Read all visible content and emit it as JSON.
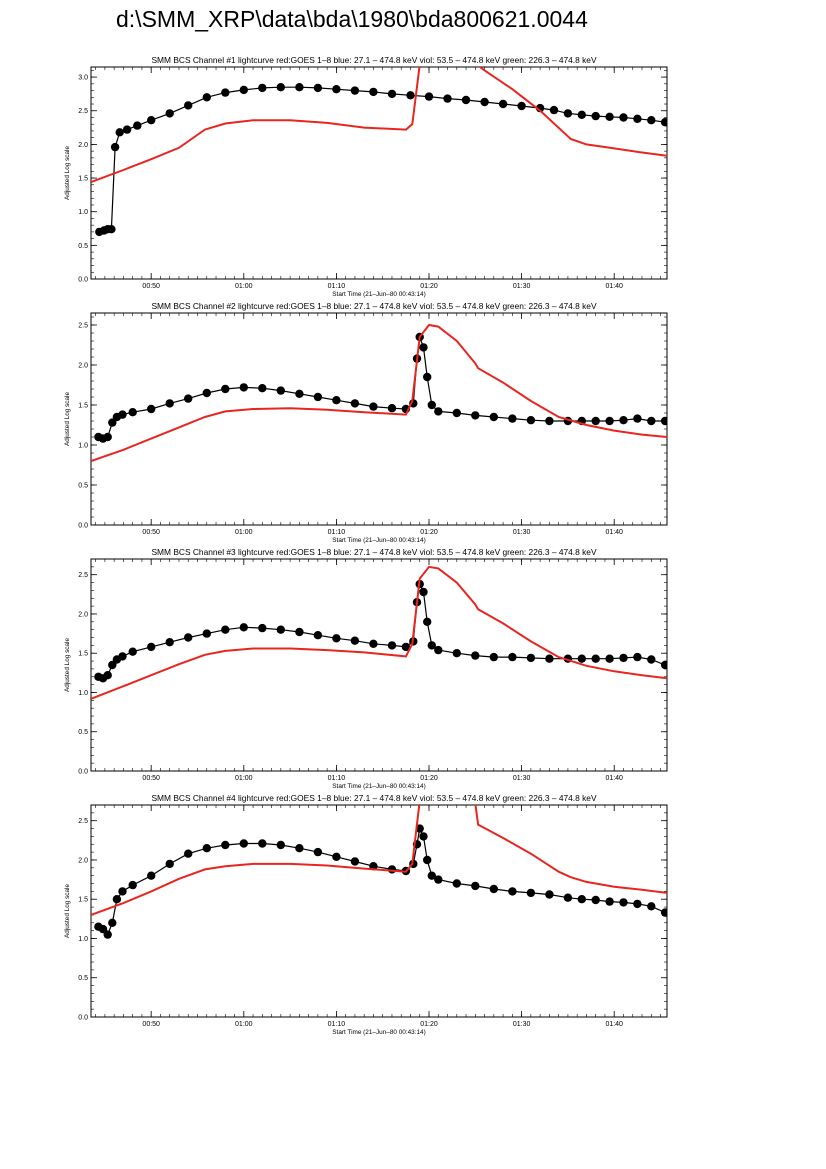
{
  "page": {
    "title": "d:\\SMM_XRP\\data\\bda\\1980\\bda800621.0044"
  },
  "colors": {
    "goes": "#e8251f",
    "bcs": "#000000",
    "axes": "#000000"
  },
  "chart_data": [
    {
      "type": "line",
      "title": "SMM BCS Channel #1 lightcurve  red:GOES 1–8  blue: 27.1 – 474.8 keV  viol: 53.5 – 474.8 keV  green: 226.3 – 474.8 keV",
      "xlabel": "Start Time (21–Jun–80 00:43:14)",
      "ylabel": "Adjusted Log scale",
      "xlim": [
        43.5,
        105.7
      ],
      "ylim": [
        0,
        3.15
      ],
      "x_ticks": [
        50,
        60,
        70,
        80,
        90,
        100
      ],
      "x_tick_labels": [
        "00:50",
        "01:00",
        "01:10",
        "01:20",
        "01:30",
        "01:40"
      ],
      "y_ticks": [
        0,
        0.5,
        1.0,
        1.5,
        2.0,
        2.5,
        3.0
      ],
      "y_tick_labels": [
        "0.0",
        "0.5",
        "1.0",
        "1.5",
        "2.0",
        "2.5",
        "3.0"
      ],
      "grid": false,
      "series": [
        {
          "name": "red:GOES 1–8",
          "x": [
            43.5,
            47,
            50,
            53,
            55.8,
            58,
            61,
            65,
            69,
            73,
            77.5,
            78.2,
            79,
            80,
            85,
            86,
            89,
            92,
            95,
            95.3,
            97,
            100,
            103,
            105.7
          ],
          "y": [
            1.44,
            1.62,
            1.78,
            1.95,
            2.22,
            2.31,
            2.36,
            2.36,
            2.32,
            2.25,
            2.22,
            2.3,
            3.18,
            3.25,
            3.2,
            3.1,
            2.82,
            2.5,
            2.12,
            2.08,
            2.0,
            1.94,
            1.88,
            1.83
          ]
        },
        {
          "name": "BCS",
          "x": [
            44.4,
            44.9,
            45.3,
            45.7,
            46.1,
            46.6,
            47.4,
            48.5,
            50,
            52,
            54,
            56,
            58,
            60,
            62,
            64,
            66,
            68,
            70,
            72,
            74,
            76,
            78,
            80,
            82,
            84,
            86,
            88,
            90,
            92,
            93.5,
            95,
            96.5,
            98,
            99.5,
            101,
            102.5,
            104,
            105.5
          ],
          "y": [
            0.7,
            0.72,
            0.74,
            0.74,
            1.96,
            2.18,
            2.22,
            2.28,
            2.36,
            2.46,
            2.58,
            2.7,
            2.77,
            2.81,
            2.84,
            2.85,
            2.85,
            2.84,
            2.82,
            2.8,
            2.78,
            2.75,
            2.73,
            2.71,
            2.68,
            2.66,
            2.63,
            2.6,
            2.57,
            2.54,
            2.51,
            2.46,
            2.44,
            2.42,
            2.41,
            2.4,
            2.38,
            2.36,
            2.33
          ]
        }
      ]
    },
    {
      "type": "line",
      "title": "SMM BCS Channel #2 lightcurve  red:GOES 1–8  blue: 27.1 – 474.8 keV  viol: 53.5 – 474.8 keV  green: 226.3 – 474.8 keV",
      "xlabel": "Start Time (21–Jun–80 00:43:14)",
      "ylabel": "Adjusted Log scale",
      "xlim": [
        43.5,
        105.7
      ],
      "ylim": [
        0,
        2.65
      ],
      "x_ticks": [
        50,
        60,
        70,
        80,
        90,
        100
      ],
      "x_tick_labels": [
        "00:50",
        "01:00",
        "01:10",
        "01:20",
        "01:30",
        "01:40"
      ],
      "y_ticks": [
        0,
        0.5,
        1.0,
        1.5,
        2.0,
        2.5
      ],
      "y_tick_labels": [
        "0.0",
        "0.5",
        "1.0",
        "1.5",
        "2.0",
        "2.5"
      ],
      "grid": false,
      "series": [
        {
          "name": "red:GOES 1–8",
          "x": [
            43.5,
            47,
            50,
            53,
            55.8,
            58,
            61,
            65,
            69,
            73,
            77.5,
            78.2,
            79,
            80,
            81,
            83,
            85,
            85.3,
            88,
            91,
            94,
            97,
            100,
            103,
            105.7
          ],
          "y": [
            0.8,
            0.94,
            1.08,
            1.22,
            1.35,
            1.42,
            1.45,
            1.46,
            1.44,
            1.41,
            1.38,
            1.55,
            2.35,
            2.5,
            2.48,
            2.3,
            2.02,
            1.96,
            1.78,
            1.55,
            1.35,
            1.25,
            1.18,
            1.13,
            1.1
          ]
        },
        {
          "name": "BCS",
          "x": [
            44.3,
            44.8,
            45.3,
            45.8,
            46.3,
            46.9,
            48,
            50,
            52,
            54,
            56,
            58,
            60,
            62,
            64,
            66,
            68,
            70,
            72,
            74,
            76,
            77.5,
            78.3,
            78.7,
            79,
            79.4,
            79.8,
            80.3,
            81,
            83,
            85,
            87,
            89,
            91,
            93,
            95,
            96.5,
            98,
            99.5,
            101,
            102.5,
            104,
            105.5
          ],
          "y": [
            1.1,
            1.08,
            1.1,
            1.28,
            1.35,
            1.38,
            1.41,
            1.45,
            1.52,
            1.58,
            1.65,
            1.7,
            1.72,
            1.71,
            1.68,
            1.64,
            1.6,
            1.56,
            1.52,
            1.48,
            1.46,
            1.45,
            1.52,
            2.08,
            2.35,
            2.22,
            1.85,
            1.5,
            1.42,
            1.4,
            1.37,
            1.35,
            1.33,
            1.31,
            1.3,
            1.3,
            1.3,
            1.3,
            1.3,
            1.31,
            1.33,
            1.3,
            1.3
          ]
        }
      ]
    },
    {
      "type": "line",
      "title": "SMM BCS Channel #3 lightcurve  red:GOES 1–8  blue: 27.1 – 474.8 keV  viol: 53.5 – 474.8 keV  green: 226.3 – 474.8 keV",
      "xlabel": "Start Time (21–Jun–80 00:43:14)",
      "ylabel": "Adjusted Log scale",
      "xlim": [
        43.5,
        105.7
      ],
      "ylim": [
        0,
        2.7
      ],
      "x_ticks": [
        50,
        60,
        70,
        80,
        90,
        100
      ],
      "x_tick_labels": [
        "00:50",
        "01:00",
        "01:10",
        "01:20",
        "01:30",
        "01:40"
      ],
      "y_ticks": [
        0,
        0.5,
        1.0,
        1.5,
        2.0,
        2.5
      ],
      "y_tick_labels": [
        "0.0",
        "0.5",
        "1.0",
        "1.5",
        "2.0",
        "2.5"
      ],
      "grid": false,
      "series": [
        {
          "name": "red:GOES 1–8",
          "x": [
            43.5,
            47,
            50,
            53,
            55.8,
            58,
            61,
            65,
            69,
            73,
            77.5,
            78.2,
            79,
            80,
            81,
            83,
            85,
            85.3,
            88,
            91,
            94,
            97,
            100,
            103,
            105.7
          ],
          "y": [
            0.92,
            1.08,
            1.22,
            1.36,
            1.48,
            1.53,
            1.56,
            1.56,
            1.54,
            1.51,
            1.46,
            1.62,
            2.45,
            2.6,
            2.58,
            2.4,
            2.12,
            2.06,
            1.88,
            1.65,
            1.45,
            1.34,
            1.27,
            1.22,
            1.18
          ]
        },
        {
          "name": "BCS",
          "x": [
            44.3,
            44.8,
            45.3,
            45.8,
            46.3,
            46.9,
            48,
            50,
            52,
            54,
            56,
            58,
            60,
            62,
            64,
            66,
            68,
            70,
            72,
            74,
            76,
            77.5,
            78.3,
            78.7,
            79,
            79.4,
            79.8,
            80.3,
            81,
            83,
            85,
            87,
            89,
            91,
            93,
            95,
            96.5,
            98,
            99.5,
            101,
            102.5,
            104,
            105.5
          ],
          "y": [
            1.2,
            1.18,
            1.22,
            1.35,
            1.42,
            1.46,
            1.52,
            1.58,
            1.64,
            1.7,
            1.75,
            1.8,
            1.83,
            1.82,
            1.8,
            1.77,
            1.73,
            1.69,
            1.66,
            1.62,
            1.6,
            1.58,
            1.65,
            2.15,
            2.38,
            2.28,
            1.9,
            1.6,
            1.54,
            1.5,
            1.47,
            1.45,
            1.45,
            1.44,
            1.43,
            1.43,
            1.43,
            1.43,
            1.43,
            1.44,
            1.45,
            1.42,
            1.35
          ]
        }
      ]
    },
    {
      "type": "line",
      "title": "SMM BCS Channel #4 lightcurve  red:GOES 1–8  blue: 27.1 – 474.8 keV  viol: 53.5 – 474.8 keV  green: 226.3 – 474.8 keV",
      "xlabel": "Start Time (21–Jun–80 00:43:14)",
      "ylabel": "Adjusted Log scale",
      "xlim": [
        43.5,
        105.7
      ],
      "ylim": [
        0,
        2.7
      ],
      "x_ticks": [
        50,
        60,
        70,
        80,
        90,
        100
      ],
      "x_tick_labels": [
        "00:50",
        "01:00",
        "01:10",
        "01:20",
        "01:30",
        "01:40"
      ],
      "y_ticks": [
        0,
        0.5,
        1.0,
        1.5,
        2.0,
        2.5
      ],
      "y_tick_labels": [
        "0.0",
        "0.5",
        "1.0",
        "1.5",
        "2.0",
        "2.5"
      ],
      "grid": false,
      "series": [
        {
          "name": "red:GOES 1–8",
          "x": [
            43.5,
            47,
            50,
            53,
            55.8,
            58,
            61,
            65,
            69,
            73,
            77.5,
            78.2,
            79,
            80,
            85,
            85.3,
            88,
            91,
            94,
            95.3,
            97,
            100,
            103,
            105.7
          ],
          "y": [
            1.3,
            1.45,
            1.6,
            1.76,
            1.88,
            1.92,
            1.95,
            1.95,
            1.93,
            1.89,
            1.85,
            1.95,
            2.75,
            2.85,
            2.72,
            2.45,
            2.28,
            2.08,
            1.85,
            1.78,
            1.72,
            1.66,
            1.62,
            1.58
          ]
        },
        {
          "name": "BCS",
          "x": [
            44.3,
            44.8,
            45.3,
            45.8,
            46.3,
            46.9,
            48,
            50,
            52,
            54,
            56,
            58,
            60,
            62,
            64,
            66,
            68,
            70,
            72,
            74,
            76,
            77.5,
            78.3,
            78.7,
            79,
            79.4,
            79.8,
            80.3,
            81,
            83,
            85,
            87,
            89,
            91,
            93,
            95,
            96.5,
            98,
            99.5,
            101,
            102.5,
            104,
            105.5
          ],
          "y": [
            1.15,
            1.12,
            1.05,
            1.2,
            1.5,
            1.6,
            1.68,
            1.8,
            1.95,
            2.08,
            2.15,
            2.19,
            2.21,
            2.21,
            2.19,
            2.15,
            2.1,
            2.04,
            1.98,
            1.92,
            1.88,
            1.86,
            1.95,
            2.2,
            2.4,
            2.3,
            2.0,
            1.8,
            1.75,
            1.7,
            1.67,
            1.63,
            1.6,
            1.58,
            1.56,
            1.52,
            1.5,
            1.49,
            1.47,
            1.46,
            1.44,
            1.41,
            1.33
          ]
        }
      ]
    }
  ]
}
